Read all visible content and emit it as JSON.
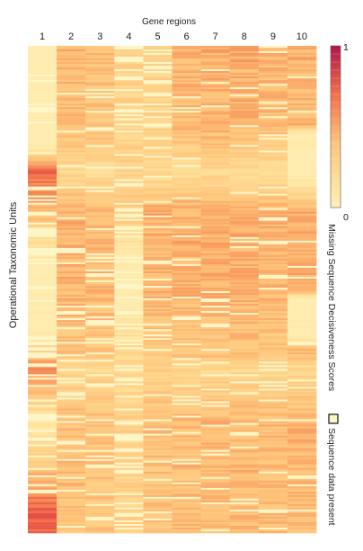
{
  "chart_data": {
    "type": "heatmap",
    "x_title": "Gene regions",
    "y_title": "Operational Taxonomic Units",
    "columns": [
      "1",
      "2",
      "3",
      "4",
      "5",
      "6",
      "7",
      "8",
      "9",
      "10"
    ],
    "n_rows": 270,
    "value_range": [
      0,
      1
    ],
    "colorbar": {
      "title": "Missing Sequence Decisiveness Scores",
      "max_label": "1",
      "min_label": "0",
      "low_color": "#fff1b8",
      "high_color": "#b0154a"
    },
    "present_legend": {
      "label": "Sequence data present",
      "color": "#fff6c8"
    },
    "column_profiles": [
      [
        [
          0,
          0.0,
          0.0
        ],
        [
          0.08,
          0.0,
          0.05
        ],
        [
          0.14,
          0.0,
          0.4
        ],
        [
          0.18,
          0.0,
          0.05
        ],
        [
          0.2,
          0.0,
          0.0
        ],
        [
          0.26,
          0.7,
          0.12
        ],
        [
          0.4,
          0.2,
          0.45
        ],
        [
          0.45,
          0.0,
          0.3
        ],
        [
          0.52,
          0.0,
          0.08
        ],
        [
          0.6,
          0.05,
          0.45
        ],
        [
          0.66,
          0.65,
          0.18
        ],
        [
          0.73,
          0.3,
          0.55
        ],
        [
          0.78,
          0.1,
          0.25
        ],
        [
          0.96,
          0.72,
          0.0
        ],
        [
          1.0,
          0.72,
          0.0
        ]
      ],
      [
        [
          0,
          0.46,
          0.08
        ],
        [
          0.15,
          0.4,
          0.12
        ],
        [
          0.2,
          0.36,
          0.1
        ],
        [
          0.26,
          0.23,
          0.12
        ],
        [
          0.34,
          0.47,
          0.1
        ],
        [
          0.5,
          0.44,
          0.15
        ],
        [
          0.64,
          0.37,
          0.18
        ],
        [
          0.66,
          0.24,
          0.2
        ],
        [
          0.77,
          0.42,
          0.15
        ],
        [
          1.0,
          0.38,
          0.15
        ]
      ],
      [
        [
          0,
          0.41,
          0.1
        ],
        [
          0.16,
          0.37,
          0.12
        ],
        [
          0.2,
          0.36,
          0.12
        ],
        [
          0.26,
          0.21,
          0.12
        ],
        [
          0.34,
          0.45,
          0.12
        ],
        [
          0.5,
          0.42,
          0.15
        ],
        [
          0.64,
          0.36,
          0.18
        ],
        [
          0.66,
          0.24,
          0.2
        ],
        [
          0.77,
          0.4,
          0.18
        ],
        [
          1.0,
          0.36,
          0.18
        ]
      ],
      [
        [
          0,
          0.3,
          0.25
        ],
        [
          0.18,
          0.28,
          0.3
        ],
        [
          0.21,
          0.3,
          0.1
        ],
        [
          0.26,
          0.28,
          0.08
        ],
        [
          0.34,
          0.38,
          0.3
        ],
        [
          0.44,
          0.0,
          0.15
        ],
        [
          0.52,
          0.06,
          0.25
        ],
        [
          0.64,
          0.25,
          0.3
        ],
        [
          0.66,
          0.22,
          0.2
        ],
        [
          0.77,
          0.3,
          0.4
        ],
        [
          1.0,
          0.3,
          0.35
        ]
      ],
      [
        [
          0,
          0.3,
          0.25
        ],
        [
          0.16,
          0.3,
          0.22
        ],
        [
          0.2,
          0.28,
          0.15
        ],
        [
          0.26,
          0.22,
          0.1
        ],
        [
          0.34,
          0.48,
          0.08
        ],
        [
          0.5,
          0.43,
          0.2
        ],
        [
          0.64,
          0.35,
          0.15
        ],
        [
          0.66,
          0.3,
          0.2
        ],
        [
          0.77,
          0.4,
          0.15
        ],
        [
          1.0,
          0.38,
          0.15
        ]
      ],
      [
        [
          0,
          0.46,
          0.08
        ],
        [
          0.16,
          0.42,
          0.08
        ],
        [
          0.2,
          0.36,
          0.08
        ],
        [
          0.26,
          0.2,
          0.06
        ],
        [
          0.34,
          0.47,
          0.06
        ],
        [
          0.5,
          0.45,
          0.1
        ],
        [
          0.64,
          0.35,
          0.08
        ],
        [
          0.66,
          0.25,
          0.1
        ],
        [
          0.77,
          0.43,
          0.08
        ],
        [
          1.0,
          0.4,
          0.08
        ]
      ],
      [
        [
          0,
          0.48,
          0.06
        ],
        [
          0.16,
          0.44,
          0.08
        ],
        [
          0.2,
          0.38,
          0.08
        ],
        [
          0.26,
          0.23,
          0.06
        ],
        [
          0.34,
          0.47,
          0.06
        ],
        [
          0.5,
          0.46,
          0.1
        ],
        [
          0.64,
          0.37,
          0.08
        ],
        [
          0.66,
          0.26,
          0.1
        ],
        [
          0.77,
          0.44,
          0.08
        ],
        [
          1.0,
          0.42,
          0.08
        ]
      ],
      [
        [
          0,
          0.48,
          0.06
        ],
        [
          0.16,
          0.44,
          0.08
        ],
        [
          0.2,
          0.38,
          0.08
        ],
        [
          0.26,
          0.23,
          0.06
        ],
        [
          0.34,
          0.47,
          0.06
        ],
        [
          0.5,
          0.46,
          0.1
        ],
        [
          0.64,
          0.37,
          0.08
        ],
        [
          0.66,
          0.26,
          0.1
        ],
        [
          0.77,
          0.44,
          0.08
        ],
        [
          1.0,
          0.42,
          0.08
        ]
      ],
      [
        [
          0,
          0.44,
          0.1
        ],
        [
          0.16,
          0.42,
          0.1
        ],
        [
          0.2,
          0.36,
          0.1
        ],
        [
          0.26,
          0.22,
          0.08
        ],
        [
          0.34,
          0.46,
          0.08
        ],
        [
          0.5,
          0.44,
          0.12
        ],
        [
          0.64,
          0.36,
          0.1
        ],
        [
          0.66,
          0.25,
          0.15
        ],
        [
          0.77,
          0.43,
          0.12
        ],
        [
          1.0,
          0.4,
          0.12
        ]
      ],
      [
        [
          0,
          0.47,
          0.08
        ],
        [
          0.16,
          0.42,
          0.1
        ],
        [
          0.18,
          0.05,
          0.05
        ],
        [
          0.26,
          0.0,
          0.0
        ],
        [
          0.34,
          0.47,
          0.06
        ],
        [
          0.5,
          0.46,
          0.1
        ],
        [
          0.52,
          0.0,
          0.0
        ],
        [
          0.6,
          0.0,
          0.0
        ],
        [
          0.61,
          0.42,
          0.1
        ],
        [
          0.64,
          0.37,
          0.08
        ],
        [
          0.66,
          0.26,
          0.1
        ],
        [
          0.77,
          0.44,
          0.08
        ],
        [
          1.0,
          0.42,
          0.08
        ]
      ]
    ]
  }
}
